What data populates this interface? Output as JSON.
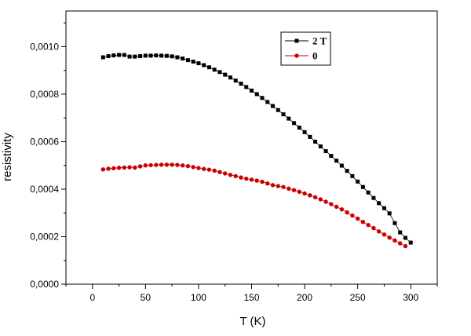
{
  "chart_data": {
    "type": "scatter",
    "title": "",
    "xlabel": "T (K)",
    "ylabel": "resistivity",
    "xlim": [
      -25,
      325
    ],
    "ylim": [
      0,
      0.00115
    ],
    "x_ticks": [
      0,
      50,
      100,
      150,
      200,
      250,
      300
    ],
    "x_tick_labels": [
      "0",
      "50",
      "100",
      "150",
      "200",
      "250",
      "300"
    ],
    "y_ticks": [
      0,
      0.0002,
      0.0004,
      0.0006,
      0.0008,
      0.001
    ],
    "y_tick_labels": [
      "0,0000",
      "0,0002",
      "0,0004",
      "0,0006",
      "0,0008",
      "0,0010"
    ],
    "grid": false,
    "legend_position": "top-right",
    "series": [
      {
        "name": "2 T",
        "color": "#000000",
        "marker": "square",
        "x": [
          10,
          15,
          20,
          25,
          30,
          35,
          40,
          45,
          50,
          55,
          60,
          65,
          70,
          75,
          80,
          85,
          90,
          95,
          100,
          105,
          110,
          115,
          120,
          125,
          130,
          135,
          140,
          145,
          150,
          155,
          160,
          165,
          170,
          175,
          180,
          185,
          190,
          195,
          200,
          205,
          210,
          215,
          220,
          225,
          230,
          235,
          240,
          245,
          250,
          255,
          260,
          265,
          270,
          275,
          280,
          285,
          290,
          295,
          300
        ],
        "y": [
          0.000955,
          0.00096,
          0.000963,
          0.000965,
          0.000965,
          0.000958,
          0.000958,
          0.00096,
          0.000962,
          0.000962,
          0.000963,
          0.000962,
          0.000961,
          0.000959,
          0.000955,
          0.00095,
          0.000943,
          0.000937,
          0.00093,
          0.000922,
          0.000913,
          0.000903,
          0.000893,
          0.000882,
          0.00087,
          0.000857,
          0.000844,
          0.00083,
          0.000815,
          0.0008,
          0.000784,
          0.000767,
          0.00075,
          0.000733,
          0.000715,
          0.000697,
          0.000678,
          0.000659,
          0.00064,
          0.00062,
          0.0006,
          0.00058,
          0.00056,
          0.00054,
          0.00052,
          0.000499,
          0.000477,
          0.000455,
          0.000432,
          0.000409,
          0.000386,
          0.000363,
          0.000341,
          0.00032,
          0.000298,
          0.000257,
          0.000218,
          0.000195,
          0.000175
        ]
      },
      {
        "name": "0",
        "color": "#cc0000",
        "marker": "circle",
        "x": [
          10,
          15,
          20,
          25,
          30,
          35,
          40,
          45,
          50,
          55,
          60,
          65,
          70,
          75,
          80,
          85,
          90,
          95,
          100,
          105,
          110,
          115,
          120,
          125,
          130,
          135,
          140,
          145,
          150,
          155,
          160,
          165,
          170,
          175,
          180,
          185,
          190,
          195,
          200,
          205,
          210,
          215,
          220,
          225,
          230,
          235,
          240,
          245,
          250,
          255,
          260,
          265,
          270,
          275,
          280,
          285,
          290,
          295
        ],
        "y": [
          0.000483,
          0.000486,
          0.000488,
          0.00049,
          0.000491,
          0.000492,
          0.000491,
          0.000496,
          0.0005,
          0.000501,
          0.000502,
          0.000503,
          0.000503,
          0.000503,
          0.000502,
          0.0005,
          0.000497,
          0.000493,
          0.000489,
          0.000485,
          0.000482,
          0.000478,
          0.000472,
          0.000466,
          0.00046,
          0.000455,
          0.000449,
          0.000444,
          0.00044,
          0.000436,
          0.000431,
          0.000424,
          0.000417,
          0.000413,
          0.000409,
          0.000402,
          0.000396,
          0.000389,
          0.000382,
          0.000374,
          0.000366,
          0.000357,
          0.000347,
          0.000337,
          0.000326,
          0.000315,
          0.000302,
          0.000289,
          0.000276,
          0.000262,
          0.000249,
          0.000236,
          0.000222,
          0.000209,
          0.000196,
          0.000184,
          0.000172,
          0.00016
        ]
      }
    ]
  }
}
